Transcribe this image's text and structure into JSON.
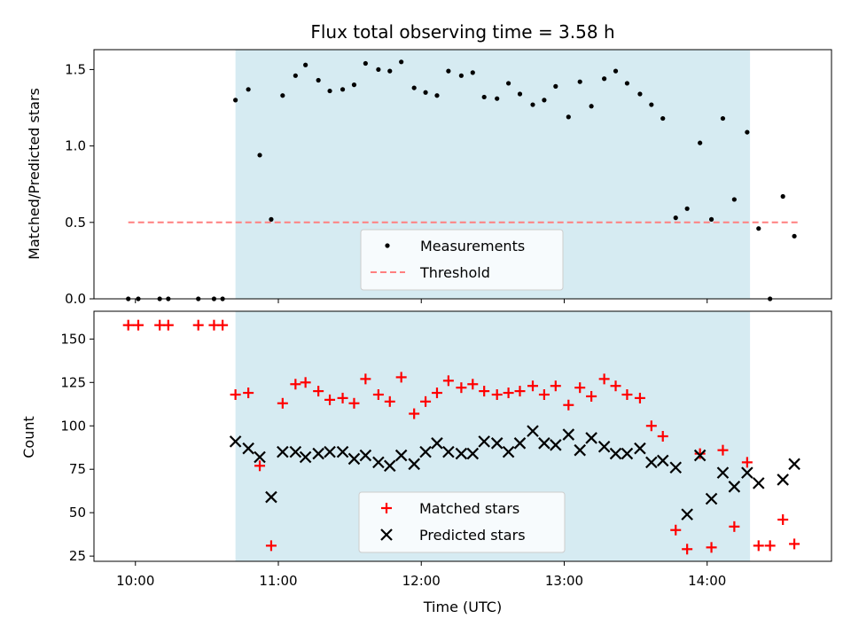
{
  "title": "Flux total observing time = 3.58 h",
  "colors": {
    "shade": "#add8e6",
    "measurement": "#000000",
    "threshold": "#ff7f7f",
    "matched": "#ff0000",
    "predicted": "#000000"
  },
  "chart_data": [
    {
      "type": "scatter",
      "ylabel": "Matched/Predicted stars",
      "xlim": [
        9.71,
        14.87
      ],
      "ylim": [
        0,
        1.63
      ],
      "yticks": [
        0.0,
        0.5,
        1.0,
        1.5
      ],
      "ytick_labels": [
        "0.0",
        "0.5",
        "1.0",
        "1.5"
      ],
      "observing_window": [
        10.7,
        14.3
      ],
      "threshold": {
        "value": 0.5,
        "x_range": [
          9.95,
          14.65
        ]
      },
      "legend": {
        "placement": "lower center",
        "entries": [
          "Measurements",
          "Threshold"
        ]
      },
      "series": [
        {
          "name": "Measurements",
          "x": [
            9.95,
            10.02,
            10.17,
            10.23,
            10.44,
            10.55,
            10.61,
            10.7,
            10.79,
            10.87,
            10.95,
            11.03,
            11.12,
            11.19,
            11.28,
            11.36,
            11.45,
            11.53,
            11.61,
            11.7,
            11.78,
            11.86,
            11.95,
            12.03,
            12.11,
            12.19,
            12.28,
            12.36,
            12.44,
            12.53,
            12.61,
            12.69,
            12.78,
            12.86,
            12.94,
            13.03,
            13.11,
            13.19,
            13.28,
            13.36,
            13.44,
            13.53,
            13.61,
            13.69,
            13.78,
            13.86,
            13.95,
            14.03,
            14.11,
            14.19,
            14.28,
            14.36,
            14.44,
            14.53,
            14.61
          ],
          "y": [
            0,
            0,
            0,
            0,
            0,
            0,
            0,
            1.3,
            1.37,
            0.94,
            0.52,
            1.33,
            1.46,
            1.53,
            1.43,
            1.36,
            1.37,
            1.4,
            1.54,
            1.5,
            1.49,
            1.55,
            1.38,
            1.35,
            1.33,
            1.49,
            1.46,
            1.48,
            1.32,
            1.31,
            1.41,
            1.34,
            1.27,
            1.3,
            1.39,
            1.19,
            1.42,
            1.26,
            1.44,
            1.49,
            1.41,
            1.34,
            1.27,
            1.18,
            0.53,
            0.59,
            1.02,
            0.52,
            1.18,
            0.65,
            1.09,
            0.46,
            0,
            0.67,
            0.41
          ]
        }
      ]
    },
    {
      "type": "scatter",
      "xlabel": "Time (UTC)",
      "ylabel": "Count",
      "xlim": [
        9.71,
        14.87
      ],
      "ylim": [
        22,
        166
      ],
      "xticks": [
        10,
        11,
        12,
        13,
        14
      ],
      "xtick_labels": [
        "10:00",
        "11:00",
        "12:00",
        "13:00",
        "14:00"
      ],
      "yticks": [
        25,
        50,
        75,
        100,
        125,
        150
      ],
      "ytick_labels": [
        "25",
        "50",
        "75",
        "100",
        "125",
        "150"
      ],
      "observing_window": [
        10.7,
        14.3
      ],
      "legend": {
        "placement": "lower center",
        "entries": [
          "Matched stars",
          "Predicted stars"
        ]
      },
      "series": [
        {
          "name": "Matched stars",
          "marker": "plus",
          "x": [
            9.95,
            10.02,
            10.17,
            10.23,
            10.44,
            10.55,
            10.61,
            10.7,
            10.79,
            10.87,
            10.95,
            11.03,
            11.12,
            11.19,
            11.28,
            11.36,
            11.45,
            11.53,
            11.61,
            11.7,
            11.78,
            11.86,
            11.95,
            12.03,
            12.11,
            12.19,
            12.28,
            12.36,
            12.44,
            12.53,
            12.61,
            12.69,
            12.78,
            12.86,
            12.94,
            13.03,
            13.11,
            13.19,
            13.28,
            13.36,
            13.44,
            13.53,
            13.61,
            13.69,
            13.78,
            13.86,
            13.95,
            14.03,
            14.11,
            14.19,
            14.28,
            14.36,
            14.44,
            14.53,
            14.61
          ],
          "y": [
            158,
            158,
            158,
            158,
            158,
            158,
            158,
            118,
            119,
            77,
            31,
            113,
            124,
            125,
            120,
            115,
            116,
            113,
            127,
            118,
            114,
            128,
            107,
            114,
            119,
            126,
            122,
            124,
            120,
            118,
            119,
            120,
            123,
            118,
            123,
            112,
            122,
            117,
            127,
            123,
            118,
            116,
            100,
            94,
            40,
            29,
            84,
            30,
            86,
            42,
            79,
            31,
            31,
            46,
            32
          ]
        },
        {
          "name": "Predicted stars",
          "marker": "x",
          "x": [
            10.7,
            10.79,
            10.87,
            10.95,
            11.03,
            11.12,
            11.19,
            11.28,
            11.36,
            11.45,
            11.53,
            11.61,
            11.7,
            11.78,
            11.86,
            11.95,
            12.03,
            12.11,
            12.19,
            12.28,
            12.36,
            12.44,
            12.53,
            12.61,
            12.69,
            12.78,
            12.86,
            12.94,
            13.03,
            13.11,
            13.19,
            13.28,
            13.36,
            13.44,
            13.53,
            13.61,
            13.69,
            13.78,
            13.86,
            13.95,
            14.03,
            14.11,
            14.19,
            14.28,
            14.36,
            14.53,
            14.61
          ],
          "y": [
            91,
            87,
            82,
            59,
            85,
            85,
            82,
            84,
            85,
            85,
            81,
            83,
            79,
            77,
            83,
            78,
            85,
            90,
            85,
            84,
            84,
            91,
            90,
            85,
            90,
            97,
            90,
            89,
            95,
            86,
            93,
            88,
            84,
            84,
            87,
            79,
            80,
            76,
            49,
            83,
            58,
            73,
            65,
            73,
            67,
            69,
            78
          ]
        }
      ]
    }
  ]
}
